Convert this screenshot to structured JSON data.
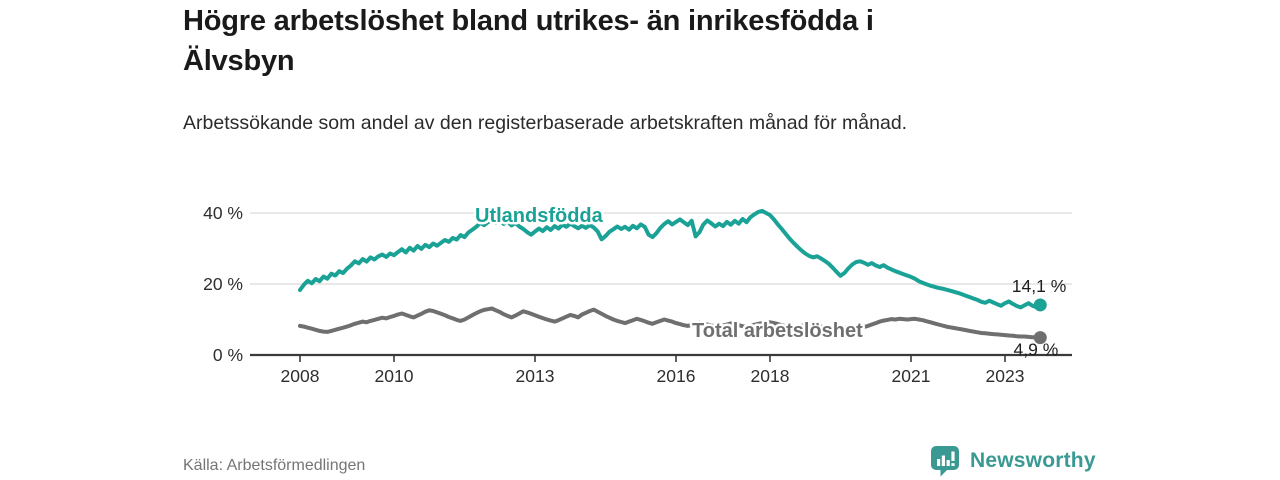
{
  "header": {
    "title": "Högre arbetslöshet bland utrikes- än inrikesfödda i Älvsbyn",
    "title_lines": [
      "Högre arbetslöshet bland utrikes- än inrikesfödda i",
      "Älvsbyn"
    ],
    "subtitle": "Arbetssökande som andel av den registerbaserade arbetskraften månad för månad."
  },
  "footer": {
    "source": "Källa: Arbetsförmedlingen",
    "brand": "Newsworthy",
    "brand_icon": "newsworthy-bar-chart-pin-icon"
  },
  "colors": {
    "accent_teal": "#1aa296",
    "series_gray": "#6f6f6f",
    "brand_teal": "#3a9a93",
    "grid": "#d9d9d9",
    "axis": "#3a3a3a",
    "text_dark": "#1f1f1f",
    "text_muted": "#757575"
  },
  "chart_data": {
    "type": "line",
    "title": "Högre arbetslöshet bland utrikes- än inrikesfödda i Älvsbyn",
    "subtitle": "Arbetssökande som andel av den registerbaserade arbetskraften månad för månad.",
    "xlabel": "",
    "ylabel": "",
    "x_start_year": 2008,
    "x_start_month": 1,
    "frequency": "monthly",
    "ylim": [
      0,
      44
    ],
    "grid": true,
    "legend_position": "inline-labels",
    "x_ticks": [
      {
        "year": 2008,
        "label": "2008"
      },
      {
        "year": 2010,
        "label": "2010"
      },
      {
        "year": 2013,
        "label": "2013"
      },
      {
        "year": 2016,
        "label": "2016"
      },
      {
        "year": 2018,
        "label": "2018"
      },
      {
        "year": 2021,
        "label": "2021"
      },
      {
        "year": 2023,
        "label": "2023"
      }
    ],
    "y_ticks": [
      {
        "value": 0,
        "label": "0 %"
      },
      {
        "value": 20,
        "label": "20 %"
      },
      {
        "value": 40,
        "label": "40 %"
      }
    ],
    "series": [
      {
        "name": "Utlandsfödda",
        "color": "#1aa296",
        "end_label": "14,1 %",
        "end_value": 14.1,
        "values": [
          18.3,
          19.8,
          20.9,
          20.2,
          21.4,
          20.8,
          22.1,
          21.5,
          22.9,
          22.4,
          23.6,
          23.1,
          24.3,
          25.2,
          26.4,
          25.8,
          27.0,
          26.3,
          27.5,
          26.9,
          27.8,
          28.3,
          27.6,
          28.6,
          28.1,
          29.0,
          29.8,
          28.9,
          30.2,
          29.4,
          30.7,
          29.9,
          31.0,
          30.4,
          31.4,
          30.8,
          31.6,
          32.4,
          31.9,
          33.0,
          32.5,
          33.8,
          33.2,
          34.5,
          35.3,
          36.1,
          37.2,
          36.6,
          37.4,
          38.1,
          37.3,
          38.0,
          36.9,
          37.6,
          36.5,
          37.2,
          36.2,
          35.5,
          34.6,
          33.9,
          34.8,
          35.6,
          34.9,
          36.0,
          35.2,
          36.3,
          35.6,
          36.7,
          36.1,
          37.0,
          36.3,
          35.7,
          36.4,
          35.8,
          36.6,
          35.9,
          34.8,
          32.6,
          33.5,
          34.7,
          35.4,
          36.2,
          35.5,
          36.1,
          35.3,
          36.4,
          35.7,
          36.8,
          36.1,
          33.9,
          33.2,
          34.3,
          35.8,
          36.9,
          37.7,
          36.8,
          37.5,
          38.2,
          37.4,
          36.6,
          37.8,
          33.4,
          34.6,
          36.8,
          37.9,
          37.1,
          36.2,
          37.0,
          36.3,
          37.5,
          36.7,
          37.8,
          37.0,
          38.3,
          37.4,
          38.8,
          39.6,
          40.3,
          40.6,
          40.0,
          39.4,
          38.2,
          36.8,
          35.5,
          34.1,
          32.8,
          31.6,
          30.5,
          29.5,
          28.6,
          27.9,
          27.5,
          27.8,
          27.2,
          26.5,
          25.7,
          24.6,
          23.4,
          22.3,
          23.1,
          24.4,
          25.5,
          26.2,
          26.4,
          26.0,
          25.4,
          25.9,
          25.2,
          24.8,
          25.3,
          24.6,
          24.1,
          23.6,
          23.2,
          22.8,
          22.4,
          22.0,
          21.5,
          20.8,
          20.3,
          19.9,
          19.5,
          19.2,
          18.9,
          18.7,
          18.4,
          18.1,
          17.8,
          17.5,
          17.1,
          16.7,
          16.3,
          15.9,
          15.5,
          15.0,
          14.7,
          15.3,
          14.8,
          14.3,
          13.9,
          14.6,
          15.1,
          14.4,
          13.8,
          13.4,
          14.0,
          14.6,
          13.9,
          13.5,
          14.1
        ]
      },
      {
        "name": "Total arbetslöshet",
        "color": "#6f6f6f",
        "end_label": "4,9 %",
        "end_value": 4.9,
        "values": [
          8.2,
          8.0,
          7.7,
          7.4,
          7.1,
          6.8,
          6.6,
          6.5,
          6.8,
          7.1,
          7.4,
          7.7,
          8.0,
          8.4,
          8.8,
          9.1,
          9.4,
          9.2,
          9.6,
          9.9,
          10.2,
          10.5,
          10.3,
          10.7,
          11.0,
          11.4,
          11.7,
          11.3,
          10.9,
          10.6,
          11.1,
          11.6,
          12.2,
          12.6,
          12.4,
          12.0,
          11.6,
          11.2,
          10.7,
          10.3,
          9.9,
          9.6,
          10.0,
          10.6,
          11.2,
          11.8,
          12.3,
          12.7,
          12.9,
          13.1,
          12.6,
          12.1,
          11.5,
          11.0,
          10.6,
          11.1,
          11.7,
          12.3,
          12.0,
          11.6,
          11.2,
          10.8,
          10.4,
          10.0,
          9.7,
          9.4,
          9.8,
          10.3,
          10.8,
          11.3,
          11.0,
          10.6,
          11.4,
          11.9,
          12.4,
          12.8,
          12.2,
          11.6,
          11.0,
          10.5,
          10.0,
          9.6,
          9.3,
          9.0,
          9.4,
          9.8,
          10.2,
          9.9,
          9.5,
          9.1,
          8.8,
          9.2,
          9.6,
          10.0,
          9.7,
          9.4,
          9.0,
          8.7,
          8.4,
          8.2,
          8.5,
          8.9,
          9.2,
          8.9,
          8.6,
          8.3,
          8.1,
          8.0,
          8.3,
          8.6,
          8.9,
          8.7,
          8.4,
          8.1,
          7.9,
          8.2,
          8.5,
          8.8,
          9.0,
          9.3,
          9.2,
          9.0,
          8.7,
          8.4,
          8.1,
          7.9,
          7.7,
          7.9,
          8.2,
          8.4,
          8.2,
          8.0,
          8.2,
          8.0,
          7.8,
          7.6,
          7.5,
          7.3,
          7.5,
          7.7,
          7.9,
          8.1,
          7.9,
          7.7,
          7.9,
          8.2,
          8.6,
          9.0,
          9.4,
          9.7,
          9.9,
          10.1,
          10.0,
          10.2,
          10.1,
          10.0,
          10.1,
          10.2,
          10.0,
          9.8,
          9.5,
          9.2,
          8.9,
          8.6,
          8.3,
          8.0,
          7.8,
          7.6,
          7.4,
          7.2,
          7.0,
          6.8,
          6.6,
          6.4,
          6.2,
          6.1,
          6.0,
          5.9,
          5.8,
          5.7,
          5.6,
          5.5,
          5.4,
          5.3,
          5.2,
          5.2,
          5.1,
          5.0,
          5.0,
          4.9
        ]
      }
    ]
  }
}
